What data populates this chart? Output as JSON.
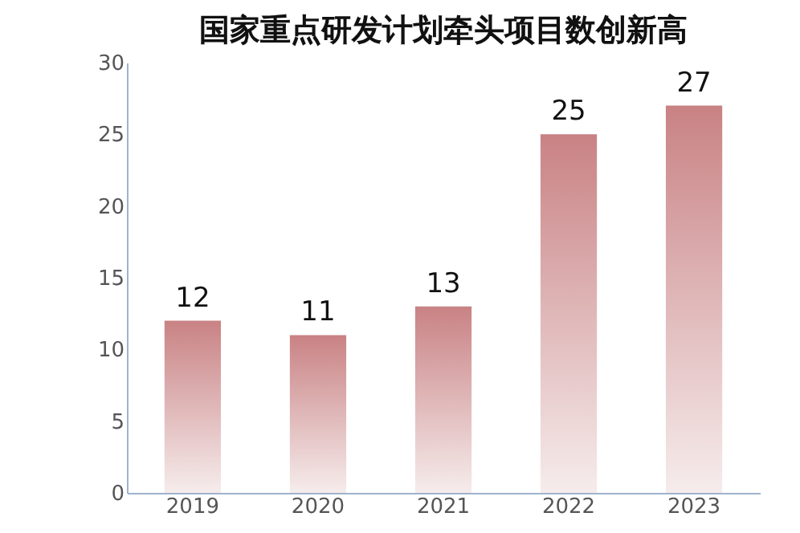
{
  "chart_data": {
    "type": "bar",
    "title": "国家重点研发计划牵头项目数创新高",
    "categories": [
      "2019",
      "2020",
      "2021",
      "2022",
      "2023"
    ],
    "values": [
      12,
      11,
      13,
      25,
      27
    ],
    "color": "#c98284",
    "ylim": [
      0,
      30
    ],
    "yticks": [
      0,
      5,
      10,
      15,
      20,
      25,
      30
    ],
    "grid": false,
    "data_labels": true
  }
}
